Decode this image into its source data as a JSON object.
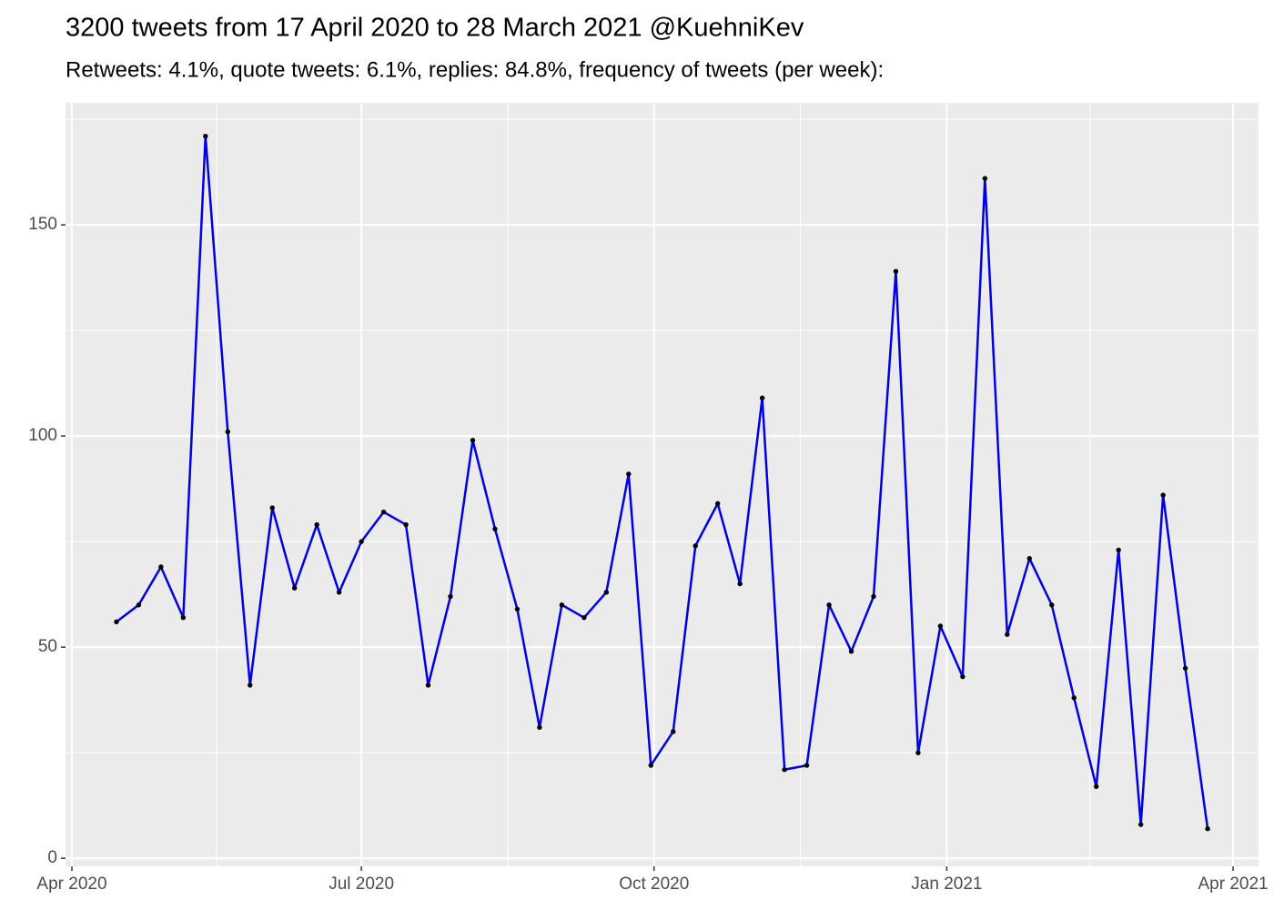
{
  "chart_data": {
    "type": "line",
    "title": "3200 tweets from 17 April 2020 to 28 March 2021 @KuehniKev",
    "subtitle": "Retweets: 4.1%, quote tweets: 6.1%, replies: 84.8%, frequency of tweets (per week):",
    "x": [
      "2020-04-15",
      "2020-04-22",
      "2020-04-29",
      "2020-05-06",
      "2020-05-13",
      "2020-05-20",
      "2020-05-27",
      "2020-06-03",
      "2020-06-10",
      "2020-06-17",
      "2020-06-24",
      "2020-07-01",
      "2020-07-08",
      "2020-07-15",
      "2020-07-22",
      "2020-07-29",
      "2020-08-05",
      "2020-08-12",
      "2020-08-19",
      "2020-08-26",
      "2020-09-02",
      "2020-09-09",
      "2020-09-16",
      "2020-09-23",
      "2020-09-30",
      "2020-10-07",
      "2020-10-14",
      "2020-10-21",
      "2020-10-28",
      "2020-11-04",
      "2020-11-11",
      "2020-11-18",
      "2020-11-25",
      "2020-12-02",
      "2020-12-09",
      "2020-12-16",
      "2020-12-23",
      "2020-12-30",
      "2021-01-06",
      "2021-01-13",
      "2021-01-20",
      "2021-01-27",
      "2021-02-03",
      "2021-02-10",
      "2021-02-17",
      "2021-02-24",
      "2021-03-03",
      "2021-03-10",
      "2021-03-17",
      "2021-03-24"
    ],
    "series": [
      {
        "color": "#0000e6",
        "point_color": "#000000",
        "values": [
          56,
          60,
          69,
          57,
          171,
          101,
          41,
          83,
          64,
          79,
          63,
          75,
          82,
          79,
          41,
          62,
          99,
          78,
          59,
          31,
          60,
          57,
          63,
          91,
          22,
          30,
          74,
          84,
          65,
          109,
          21,
          22,
          60,
          49,
          62,
          139,
          25,
          55,
          43,
          161,
          53,
          71,
          60,
          38,
          17,
          73,
          8,
          86,
          45,
          7
        ]
      }
    ],
    "xlim": [
      "2020-03-30",
      "2021-04-09"
    ],
    "xticks": [
      {
        "value": "2020-04-01",
        "label": "Apr 2020"
      },
      {
        "value": "2020-07-01",
        "label": "Jul 2020"
      },
      {
        "value": "2020-10-01",
        "label": "Oct 2020"
      },
      {
        "value": "2021-01-01",
        "label": "Jan 2021"
      },
      {
        "value": "2021-04-01",
        "label": "Apr 2021"
      }
    ],
    "ylim": [
      -1.9,
      178.9
    ],
    "yticks": [
      0,
      50,
      100,
      150
    ],
    "grid": true,
    "background": "#ebebeb"
  }
}
